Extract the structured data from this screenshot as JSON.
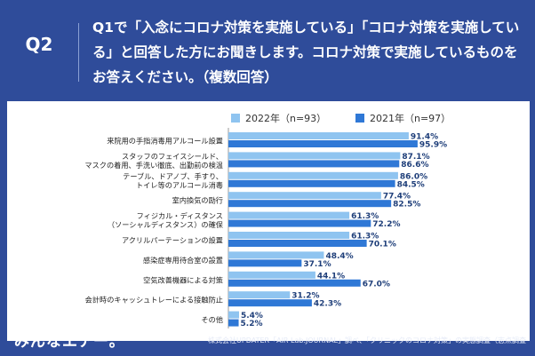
{
  "header": {
    "question_number": "Q2",
    "question_text": "Q1で「入念にコロナ対策を実施している」「コロナ対策を実施している」と回答した方にお聞きします。コロナ対策で実施しているものをお答えください。（複数回答）"
  },
  "footer": {
    "logo": "みんなエアー。",
    "source": "株式会社UPDATER「AIR Lab.JOURNAL」調べ、「クリニックのコロナ対策」の実態調査（志点調査"
  },
  "colors": {
    "background": "#2f4c9a",
    "series_2022": "#8fc4f0",
    "series_2021": "#2f78d6",
    "label_text": "#1f3f7a"
  },
  "chart_data": {
    "type": "bar",
    "orientation": "horizontal",
    "title": "",
    "xlabel": "",
    "ylabel": "",
    "xlim": [
      0,
      100
    ],
    "legend_position": "top",
    "categories": [
      [
        "来院用の手指消毒用アルコール設置"
      ],
      [
        "スタッフのフェイスシールド、",
        "マスクの着用、手洗い徹底、出勤前の検温"
      ],
      [
        "テーブル、ドアノブ、手すり、",
        "トイレ等のアルコール消毒"
      ],
      [
        "室内換気の励行"
      ],
      [
        "フィジカル・ディスタンス",
        "（ソーシャルディスタンス）の確保"
      ],
      [
        "アクリルパーテーションの設置"
      ],
      [
        "感染症専用待合室の設置"
      ],
      [
        "空気改善機器による対策"
      ],
      [
        "会計時のキャッシュトレーによる接触防止"
      ],
      [
        "その他"
      ]
    ],
    "series": [
      {
        "name": "2022年（n=93）",
        "values": [
          91.4,
          87.1,
          86.0,
          77.4,
          61.3,
          61.3,
          48.4,
          44.1,
          31.2,
          5.4
        ],
        "labels": [
          "91.4%",
          "87.1%",
          "86.0%",
          "77.4%",
          "61.3%",
          "61.3%",
          "48.4%",
          "44.1%",
          "31.2%",
          "5.4%"
        ]
      },
      {
        "name": "2021年（n=97）",
        "values": [
          95.9,
          86.6,
          84.5,
          82.5,
          72.2,
          70.1,
          37.1,
          67.0,
          42.3,
          5.2
        ],
        "labels": [
          "95.9%",
          "86.6%",
          "84.5%",
          "82.5%",
          "72.2%",
          "70.1%",
          "37.1%",
          "67.0%",
          "42.3%",
          "5.2%"
        ]
      }
    ]
  }
}
